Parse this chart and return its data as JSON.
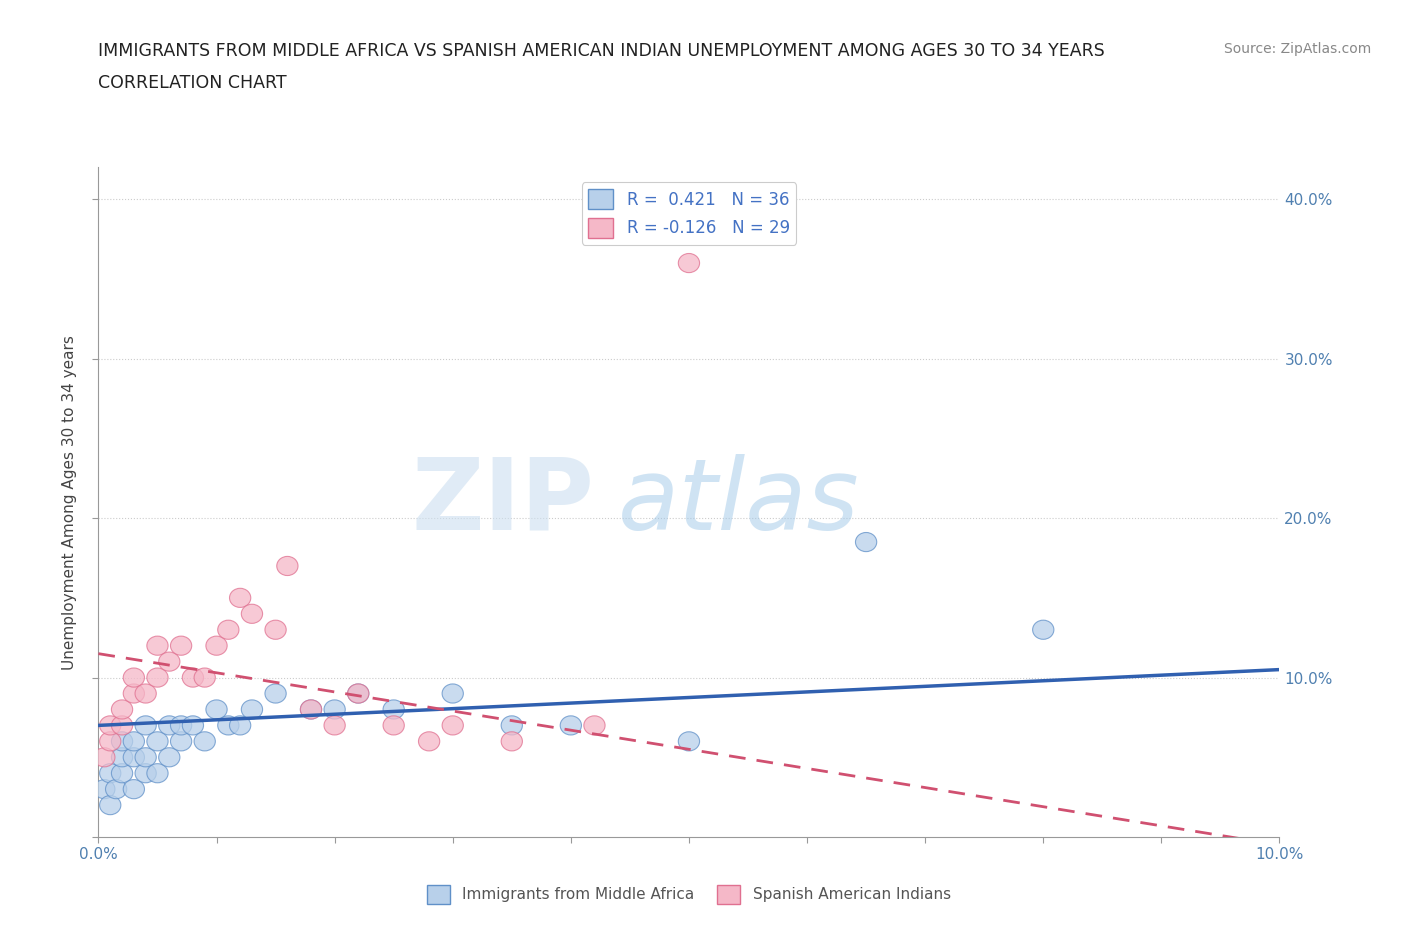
{
  "title_line1": "IMMIGRANTS FROM MIDDLE AFRICA VS SPANISH AMERICAN INDIAN UNEMPLOYMENT AMONG AGES 30 TO 34 YEARS",
  "title_line2": "CORRELATION CHART",
  "source_text": "Source: ZipAtlas.com",
  "ylabel": "Unemployment Among Ages 30 to 34 years",
  "xlim": [
    0.0,
    0.1
  ],
  "ylim": [
    0.0,
    0.42
  ],
  "xticks": [
    0.0,
    0.01,
    0.02,
    0.03,
    0.04,
    0.05,
    0.06,
    0.07,
    0.08,
    0.09,
    0.1
  ],
  "xtick_labels": [
    "0.0%",
    "",
    "",
    "",
    "",
    "",
    "",
    "",
    "",
    "",
    "10.0%"
  ],
  "ytick_positions": [
    0.0,
    0.1,
    0.2,
    0.3,
    0.4
  ],
  "ytick_labels": [
    "",
    "10.0%",
    "20.0%",
    "30.0%",
    "40.0%"
  ],
  "watermark_zip": "ZIP",
  "watermark_atlas": "atlas",
  "r_blue": "0.421",
  "n_blue": "36",
  "r_pink": "-0.126",
  "n_pink": "29",
  "blue_fill": "#b8d0ea",
  "pink_fill": "#f5b8c8",
  "blue_edge": "#6090c8",
  "pink_edge": "#e07090",
  "blue_line_color": "#3060b0",
  "pink_line_color": "#d05070",
  "grid_color": "#cccccc",
  "background_color": "#ffffff",
  "blue_scatter_x": [
    0.0005,
    0.001,
    0.001,
    0.0015,
    0.002,
    0.002,
    0.002,
    0.003,
    0.003,
    0.003,
    0.004,
    0.004,
    0.004,
    0.005,
    0.005,
    0.006,
    0.006,
    0.007,
    0.007,
    0.008,
    0.009,
    0.01,
    0.011,
    0.012,
    0.013,
    0.015,
    0.018,
    0.02,
    0.022,
    0.025,
    0.03,
    0.035,
    0.04,
    0.05,
    0.065,
    0.08
  ],
  "blue_scatter_y": [
    0.03,
    0.02,
    0.04,
    0.03,
    0.04,
    0.05,
    0.06,
    0.03,
    0.05,
    0.06,
    0.04,
    0.05,
    0.07,
    0.04,
    0.06,
    0.05,
    0.07,
    0.06,
    0.07,
    0.07,
    0.06,
    0.08,
    0.07,
    0.07,
    0.08,
    0.09,
    0.08,
    0.08,
    0.09,
    0.08,
    0.09,
    0.07,
    0.07,
    0.06,
    0.185,
    0.13
  ],
  "pink_scatter_x": [
    0.0005,
    0.001,
    0.001,
    0.002,
    0.002,
    0.003,
    0.003,
    0.004,
    0.005,
    0.005,
    0.006,
    0.007,
    0.008,
    0.009,
    0.01,
    0.011,
    0.012,
    0.013,
    0.015,
    0.016,
    0.018,
    0.02,
    0.022,
    0.025,
    0.028,
    0.03,
    0.035,
    0.042,
    0.05
  ],
  "pink_scatter_y": [
    0.05,
    0.06,
    0.07,
    0.07,
    0.08,
    0.09,
    0.1,
    0.09,
    0.1,
    0.12,
    0.11,
    0.12,
    0.1,
    0.1,
    0.12,
    0.13,
    0.15,
    0.14,
    0.13,
    0.17,
    0.08,
    0.07,
    0.09,
    0.07,
    0.06,
    0.07,
    0.06,
    0.07,
    0.36
  ],
  "blue_trend_x": [
    0.0,
    0.1
  ],
  "blue_trend_y": [
    0.07,
    0.105
  ],
  "pink_trend_x": [
    0.0,
    0.1
  ],
  "pink_trend_y": [
    0.115,
    -0.005
  ]
}
